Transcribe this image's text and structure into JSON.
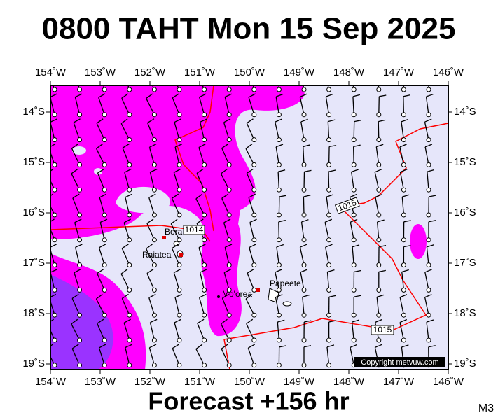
{
  "title": "0800 TAHT Mon 15 Sep 2025",
  "lon_labels": [
    "154˚W",
    "153˚W",
    "152˚W",
    "151˚W",
    "150˚W",
    "149˚W",
    "148˚W",
    "147˚W",
    "146˚W"
  ],
  "lat_labels": [
    "14˚S",
    "15˚S",
    "16˚S",
    "17˚S",
    "18˚S",
    "19˚S"
  ],
  "places": [
    "Bora Bora",
    "Raiatea",
    "Mo'orea",
    "Papeete"
  ],
  "isobar_labels": [
    "1014",
    "1015",
    "1015"
  ],
  "copyright": "Copyright metvuw.com",
  "footer": "Forecast +156 hr",
  "model": "M3"
}
